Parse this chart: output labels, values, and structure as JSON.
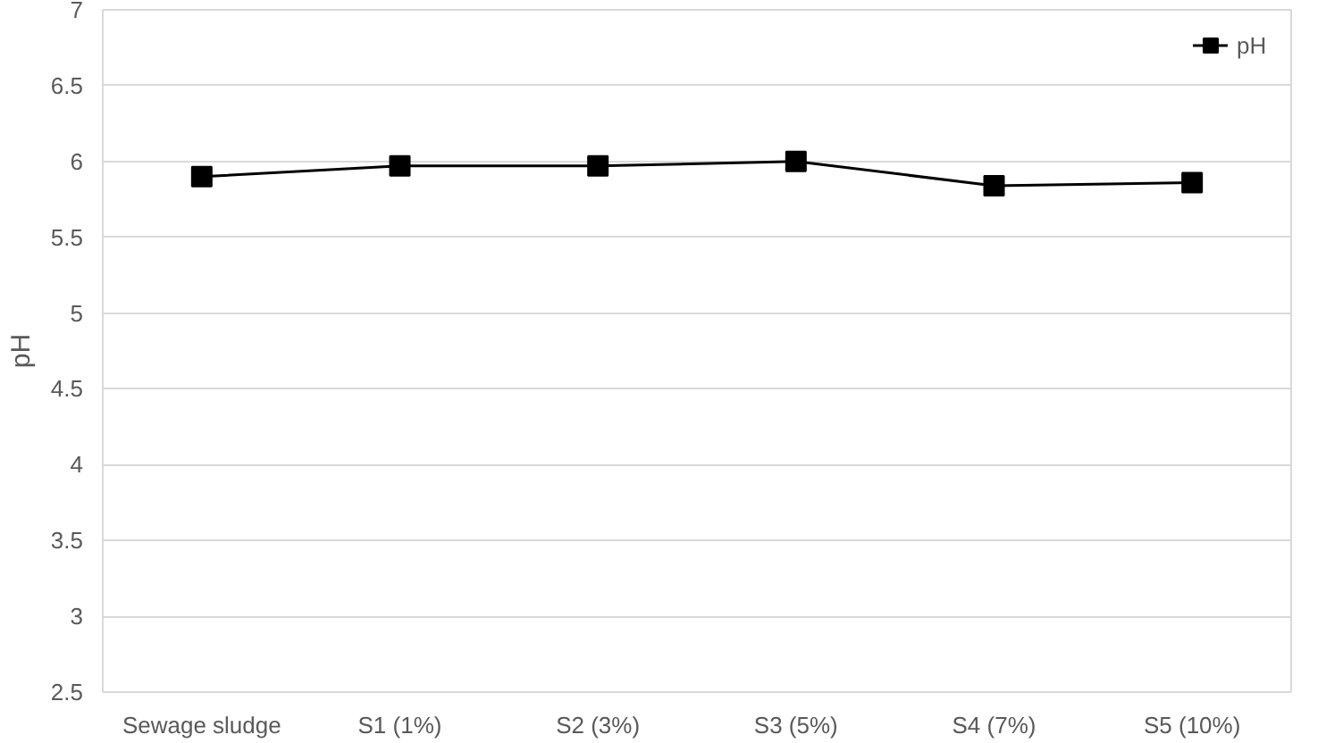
{
  "chart_data": {
    "type": "line",
    "ylabel": "pH",
    "categories": [
      "Sewage sludge",
      "S1 (1%)",
      "S2 (3%)",
      "S3 (5%)",
      "S4 (7%)",
      "S5 (10%)"
    ],
    "series": [
      {
        "name": "pH",
        "color": "#000000",
        "values": [
          5.9,
          5.97,
          5.97,
          6.0,
          5.84,
          5.86
        ]
      }
    ],
    "ylim": [
      2.5,
      7
    ],
    "yticks": [
      2.5,
      3,
      3.5,
      4,
      4.5,
      5,
      5.5,
      6,
      6.5,
      7
    ],
    "grid": "y",
    "legend": "top right",
    "marker": "square",
    "line_style": "solid"
  }
}
